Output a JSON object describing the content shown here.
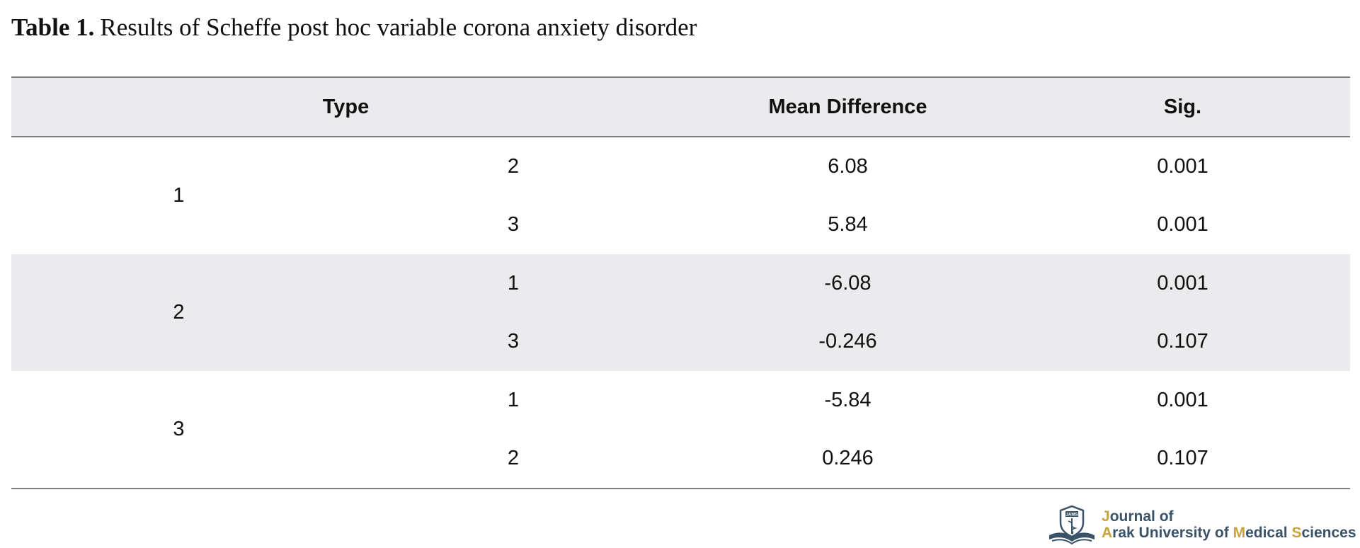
{
  "caption": {
    "label": "Table 1.",
    "text": "Results of Scheffe post hoc variable corona anxiety disorder"
  },
  "table": {
    "headers": {
      "type": "Type",
      "mean_difference": "Mean Difference",
      "sig": "Sig."
    },
    "groups": [
      {
        "label": "1",
        "rows": [
          {
            "j": "2",
            "mean_difference": "6.08",
            "sig": "0.001"
          },
          {
            "j": "3",
            "mean_difference": "5.84",
            "sig": "0.001"
          }
        ]
      },
      {
        "label": "2",
        "rows": [
          {
            "j": "1",
            "mean_difference": "-6.08",
            "sig": "0.001"
          },
          {
            "j": "3",
            "mean_difference": "-0.246",
            "sig": "0.107"
          }
        ]
      },
      {
        "label": "3",
        "rows": [
          {
            "j": "1",
            "mean_difference": "-5.84",
            "sig": "0.001"
          },
          {
            "j": "2",
            "mean_difference": "0.246",
            "sig": "0.107"
          }
        ]
      }
    ]
  },
  "logo": {
    "emblem_text": "JAMS",
    "line1": {
      "accent": "J",
      "rest": "ournal of"
    },
    "line2": {
      "a_accent": "A",
      "a_rest": "rak University of ",
      "m_accent": "M",
      "m_rest": "edical ",
      "s_accent": "S",
      "s_rest": "ciences"
    },
    "colors": {
      "primary": "#3a5368",
      "accent": "#c9a43a"
    }
  }
}
